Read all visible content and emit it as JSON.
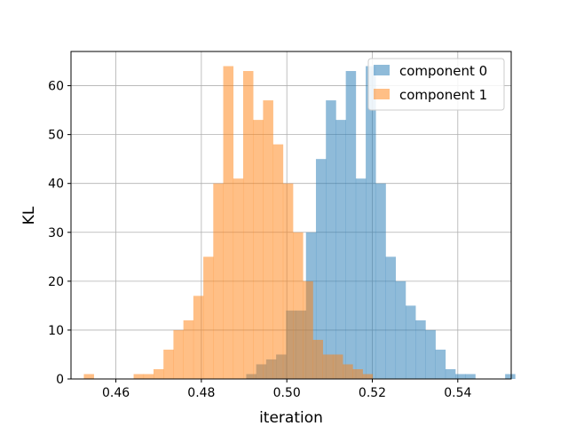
{
  "chart_data": {
    "type": "histogram",
    "title": "",
    "xlabel": "iteration",
    "ylabel": "KL",
    "xlim": [
      0.4495,
      0.5525
    ],
    "ylim": [
      0,
      67
    ],
    "xticks": [
      0.46,
      0.48,
      0.5,
      0.52,
      0.54
    ],
    "xtick_labels": [
      "0.46",
      "0.48",
      "0.50",
      "0.52",
      "0.54"
    ],
    "yticks": [
      0,
      10,
      20,
      30,
      40,
      50,
      60
    ],
    "ytick_labels": [
      "0",
      "10",
      "20",
      "30",
      "40",
      "50",
      "60"
    ],
    "grid": true,
    "legend_position": "top-right",
    "series": [
      {
        "name": "component 0",
        "color": "#1f77b4",
        "alpha": 0.5,
        "bin_start": 0.4905,
        "bin_width": 0.00233,
        "counts": [
          1,
          3,
          4,
          5,
          14,
          14,
          30,
          45,
          57,
          53,
          63,
          41,
          64,
          40,
          25,
          20,
          15,
          12,
          10,
          6,
          2,
          1,
          1,
          0,
          0,
          0,
          1
        ]
      },
      {
        "name": "component 1",
        "color": "#ff7f0e",
        "alpha": 0.5,
        "bin_start": 0.4525,
        "bin_width": 0.00233,
        "counts": [
          1,
          0,
          0,
          0,
          0,
          1,
          1,
          2,
          6,
          10,
          12,
          17,
          25,
          40,
          64,
          41,
          63,
          53,
          57,
          48,
          40,
          30,
          20,
          8,
          5,
          5,
          3,
          2,
          1,
          0,
          0,
          0,
          0,
          0
        ]
      }
    ]
  }
}
